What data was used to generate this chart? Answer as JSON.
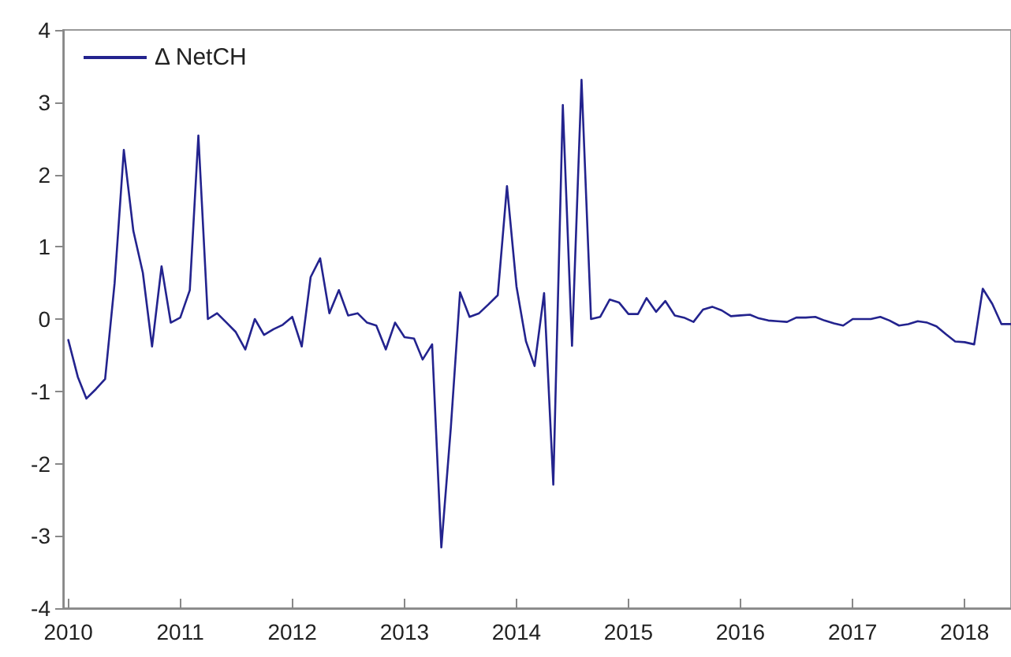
{
  "chart_data": {
    "type": "line",
    "legend": "top left",
    "grid": false,
    "marker": "none",
    "line_style": "solid",
    "x": [
      "2010-01",
      "2010-02",
      "2010-03",
      "2010-04",
      "2010-05",
      "2010-06",
      "2010-07",
      "2010-08",
      "2010-09",
      "2010-10",
      "2010-11",
      "2010-12",
      "2011-01",
      "2011-02",
      "2011-03",
      "2011-04",
      "2011-05",
      "2011-06",
      "2011-07",
      "2011-08",
      "2011-09",
      "2011-10",
      "2011-11",
      "2011-12",
      "2012-01",
      "2012-02",
      "2012-03",
      "2012-04",
      "2012-05",
      "2012-06",
      "2012-07",
      "2012-08",
      "2012-09",
      "2012-10",
      "2012-11",
      "2012-12",
      "2013-01",
      "2013-02",
      "2013-03",
      "2013-04",
      "2013-05",
      "2013-06",
      "2013-07",
      "2013-08",
      "2013-09",
      "2013-10",
      "2013-11",
      "2013-12",
      "2014-01",
      "2014-02",
      "2014-03",
      "2014-04",
      "2014-05",
      "2014-06",
      "2014-07",
      "2014-08",
      "2014-09",
      "2014-10",
      "2014-11",
      "2014-12",
      "2015-01",
      "2015-02",
      "2015-03",
      "2015-04",
      "2015-05",
      "2015-06",
      "2015-07",
      "2015-08",
      "2015-09",
      "2015-10",
      "2015-11",
      "2015-12",
      "2016-01",
      "2016-02",
      "2016-03",
      "2016-04",
      "2016-05",
      "2016-06",
      "2016-07",
      "2016-08",
      "2016-09",
      "2016-10",
      "2016-11",
      "2016-12",
      "2017-01",
      "2017-02",
      "2017-03",
      "2017-04",
      "2017-05",
      "2017-06",
      "2017-07",
      "2017-08",
      "2017-09",
      "2017-10",
      "2017-11",
      "2017-12",
      "2018-01",
      "2018-02",
      "2018-03",
      "2018-04",
      "2018-05",
      "2018-06"
    ],
    "series": [
      {
        "name": "Δ NetCH",
        "color": "#23238e",
        "values": [
          -0.29,
          -0.8,
          -1.1,
          -0.97,
          -0.83,
          0.5,
          2.34,
          1.22,
          0.64,
          -0.38,
          0.73,
          -0.05,
          0.02,
          0.4,
          2.54,
          0.0,
          0.08,
          -0.05,
          -0.18,
          -0.42,
          0.0,
          -0.22,
          -0.14,
          -0.08,
          0.03,
          -0.38,
          0.58,
          0.84,
          0.08,
          0.4,
          0.05,
          0.08,
          -0.05,
          -0.09,
          -0.42,
          -0.05,
          -0.25,
          -0.27,
          -0.56,
          -0.35,
          -3.16,
          -1.5,
          0.37,
          0.03,
          0.08,
          0.2,
          0.33,
          1.84,
          0.45,
          -0.31,
          -0.65,
          0.36,
          -2.29,
          2.96,
          -0.37,
          3.31,
          0.0,
          0.03,
          0.27,
          0.23,
          0.07,
          0.07,
          0.29,
          0.1,
          0.25,
          0.05,
          0.02,
          -0.04,
          0.13,
          0.17,
          0.12,
          0.04,
          0.05,
          0.06,
          0.01,
          -0.02,
          -0.03,
          -0.04,
          0.02,
          0.02,
          0.03,
          -0.02,
          -0.06,
          -0.09,
          0.0,
          0.0,
          0.0,
          0.03,
          -0.02,
          -0.09,
          -0.07,
          -0.03,
          -0.05,
          -0.1,
          -0.21,
          -0.31,
          -0.32,
          -0.35,
          0.42,
          0.21,
          -0.07,
          -0.07
        ]
      }
    ],
    "xlim": [
      "2009-12-15",
      "2018-06"
    ],
    "xticks": [
      "2010",
      "2011",
      "2012",
      "2013",
      "2014",
      "2015",
      "2016",
      "2017",
      "2018"
    ],
    "ylim": [
      -4,
      4
    ],
    "yticks": [
      -4,
      -3,
      -2,
      -1,
      0,
      1,
      2,
      3,
      4
    ]
  }
}
